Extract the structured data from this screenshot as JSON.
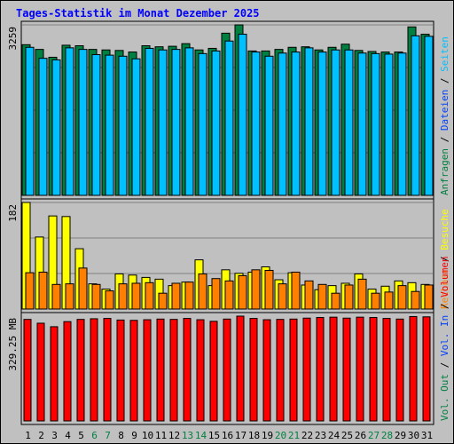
{
  "title": "Tages-Statistik im Monat Dezember 2025",
  "colors": {
    "background": "#c0c0c0",
    "plot_bg": "#c0c0c0",
    "grid": "#808080",
    "title": "#0000ff",
    "weekday_label": "#000000",
    "weekend_label": "#008040",
    "hits": "#008040",
    "files": "#0040ff",
    "pages": "#00c0ff",
    "visits": "#ffff00",
    "sites": "#ff8000",
    "kbytes": "#ff0000",
    "separator": "#000000"
  },
  "chart_data": [
    {
      "type": "bar",
      "name": "requests-files-pages",
      "ymax_label": "3259",
      "ylim": [
        0,
        3259
      ],
      "grid": true,
      "right_legend": [
        {
          "text": "Anfragen",
          "color": "#008040"
        },
        {
          "text": " / ",
          "color": "#000000"
        },
        {
          "text": "Dateien",
          "color": "#0040ff"
        },
        {
          "text": " / ",
          "color": "#000000"
        },
        {
          "text": "Seiten",
          "color": "#00c0ff"
        }
      ],
      "categories": [
        "1",
        "2",
        "3",
        "4",
        "5",
        "6",
        "7",
        "8",
        "9",
        "10",
        "11",
        "12",
        "13",
        "14",
        "15",
        "16",
        "17",
        "18",
        "19",
        "20",
        "21",
        "22",
        "23",
        "24",
        "25",
        "26",
        "27",
        "28",
        "29",
        "30",
        "31"
      ],
      "weekend": [
        6,
        7,
        13,
        14,
        20,
        21,
        27,
        28
      ],
      "series": [
        {
          "name": "Anfragen",
          "color": "#008040",
          "values": [
            2880,
            2790,
            2640,
            2870,
            2860,
            2790,
            2780,
            2770,
            2740,
            2860,
            2840,
            2850,
            2900,
            2780,
            2810,
            3100,
            3259,
            2760,
            2760,
            2790,
            2830,
            2840,
            2780,
            2830,
            2890,
            2770,
            2750,
            2740,
            2740,
            3220,
            3080
          ]
        },
        {
          "name": "Seiten",
          "color": "#00c0ff",
          "values": [
            2830,
            2620,
            2590,
            2820,
            2790,
            2690,
            2680,
            2660,
            2610,
            2810,
            2780,
            2790,
            2820,
            2710,
            2760,
            2950,
            3080,
            2740,
            2660,
            2720,
            2740,
            2820,
            2740,
            2780,
            2780,
            2720,
            2710,
            2700,
            2720,
            3050,
            3040
          ]
        }
      ]
    },
    {
      "type": "bar",
      "name": "visits-sites",
      "ymax_label": "182",
      "ylim": [
        0,
        182
      ],
      "grid": true,
      "right_legend": [
        {
          "text": "Rechner",
          "color": "#ff8000"
        },
        {
          "text": " / ",
          "color": "#000000"
        },
        {
          "text": "Besuche",
          "color": "#ffff00"
        }
      ],
      "categories": [
        "1",
        "2",
        "3",
        "4",
        "5",
        "6",
        "7",
        "8",
        "9",
        "10",
        "11",
        "12",
        "13",
        "14",
        "15",
        "16",
        "17",
        "18",
        "19",
        "20",
        "21",
        "22",
        "23",
        "24",
        "25",
        "26",
        "27",
        "28",
        "29",
        "30",
        "31"
      ],
      "series": [
        {
          "name": "Besuche",
          "color": "#ffff00",
          "values": [
            182,
            123,
            159,
            158,
            103,
            43,
            34,
            60,
            58,
            54,
            51,
            40,
            46,
            84,
            40,
            67,
            61,
            63,
            72,
            50,
            62,
            41,
            33,
            40,
            44,
            60,
            34,
            39,
            48,
            45,
            42
          ]
        },
        {
          "name": "Rechner",
          "color": "#ff8000",
          "values": [
            62,
            63,
            42,
            43,
            70,
            42,
            31,
            43,
            44,
            45,
            27,
            44,
            46,
            60,
            52,
            48,
            57,
            67,
            66,
            43,
            63,
            48,
            42,
            27,
            41,
            51,
            27,
            29,
            40,
            30,
            41
          ]
        }
      ]
    },
    {
      "type": "bar",
      "name": "volume",
      "ymax_label": "329.25 MB",
      "ylim": [
        0,
        329.25
      ],
      "grid": false,
      "right_legend": [
        {
          "text": "Vol. Out",
          "color": "#008040"
        },
        {
          "text": " / ",
          "color": "#000000"
        },
        {
          "text": "Vol. In",
          "color": "#0040ff"
        },
        {
          "text": " / ",
          "color": "#000000"
        },
        {
          "text": "Volumen",
          "color": "#ff0000"
        }
      ],
      "categories": [
        "1",
        "2",
        "3",
        "4",
        "5",
        "6",
        "7",
        "8",
        "9",
        "10",
        "11",
        "12",
        "13",
        "14",
        "15",
        "16",
        "17",
        "18",
        "19",
        "20",
        "21",
        "22",
        "23",
        "24",
        "25",
        "26",
        "27",
        "28",
        "29",
        "30",
        "31"
      ],
      "series": [
        {
          "name": "Volumen",
          "color": "#ff0000",
          "values": [
            319,
            307,
            296,
            312,
            319,
            321,
            322,
            317,
            316,
            318,
            320,
            319,
            322,
            318,
            313,
            320,
            329.25,
            322,
            318,
            319,
            320,
            323,
            325,
            326,
            323,
            326,
            325,
            322,
            320,
            328,
            327
          ]
        }
      ]
    }
  ]
}
